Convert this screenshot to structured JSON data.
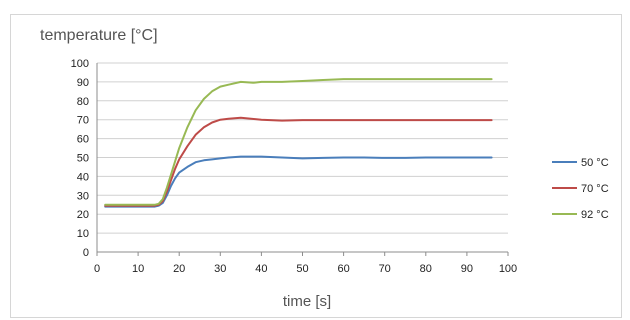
{
  "chart_data": {
    "type": "line",
    "title": "",
    "ylabel": "temperature [°C]",
    "xlabel": "time [s]",
    "xlim": [
      0,
      100
    ],
    "ylim": [
      0,
      100
    ],
    "x_ticks": [
      0,
      10,
      20,
      30,
      40,
      50,
      60,
      70,
      80,
      90,
      100
    ],
    "y_ticks": [
      0,
      10,
      20,
      30,
      40,
      50,
      60,
      70,
      80,
      90,
      100
    ],
    "grid": "horizontal",
    "legend_position": "right",
    "series": [
      {
        "name": "50 °C",
        "color": "#4a7ebb",
        "x": [
          2,
          10,
          14,
          15,
          16,
          17,
          18,
          19,
          20,
          22,
          24,
          26,
          28,
          30,
          32,
          35,
          40,
          45,
          50,
          55,
          60,
          65,
          70,
          75,
          80,
          85,
          90,
          96
        ],
        "y": [
          24,
          24,
          24,
          24.5,
          26,
          30,
          35,
          39,
          42,
          45,
          47.5,
          48.5,
          49,
          49.5,
          50,
          50.5,
          50.5,
          50,
          49.5,
          49.8,
          50,
          50,
          49.8,
          49.8,
          50,
          50,
          50,
          50
        ]
      },
      {
        "name": "70 °C",
        "color": "#be4b48",
        "x": [
          2,
          10,
          14,
          15,
          16,
          17,
          18,
          19,
          20,
          22,
          24,
          26,
          28,
          30,
          32,
          35,
          40,
          45,
          50,
          55,
          60,
          65,
          70,
          75,
          80,
          85,
          90,
          96
        ],
        "y": [
          24.5,
          24.5,
          24.5,
          25,
          27,
          32,
          38,
          44,
          49,
          56,
          62,
          66,
          68.5,
          70,
          70.5,
          71,
          70,
          69.5,
          69.8,
          69.8,
          69.8,
          69.8,
          69.8,
          69.8,
          69.8,
          69.8,
          69.8,
          69.8
        ]
      },
      {
        "name": "92 °C",
        "color": "#98b954",
        "x": [
          2,
          10,
          14,
          15,
          16,
          17,
          18,
          19,
          20,
          22,
          24,
          26,
          28,
          30,
          32,
          35,
          38,
          40,
          45,
          50,
          55,
          60,
          65,
          70,
          75,
          80,
          85,
          90,
          96
        ],
        "y": [
          25,
          25,
          25,
          25.5,
          28,
          34,
          41,
          48,
          55,
          66,
          75,
          81,
          85,
          87.5,
          88.5,
          90,
          89.5,
          90,
          90,
          90.5,
          91,
          91.5,
          91.5,
          91.5,
          91.5,
          91.5,
          91.5,
          91.5,
          91.5
        ]
      }
    ]
  }
}
